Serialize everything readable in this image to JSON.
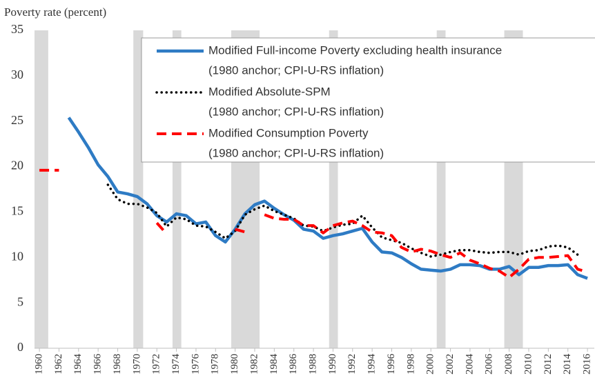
{
  "chart_data": {
    "type": "line",
    "y_label": "Poverty rate (percent)",
    "x": [
      1960,
      1961,
      1962,
      1963,
      1964,
      1965,
      1966,
      1967,
      1968,
      1969,
      1970,
      1971,
      1972,
      1973,
      1974,
      1975,
      1976,
      1977,
      1978,
      1979,
      1980,
      1981,
      1982,
      1983,
      1984,
      1985,
      1986,
      1987,
      1988,
      1989,
      1990,
      1991,
      1992,
      1993,
      1994,
      1995,
      1996,
      1997,
      1998,
      1999,
      2000,
      2001,
      2002,
      2003,
      2004,
      2005,
      2006,
      2007,
      2008,
      2009,
      2010,
      2011,
      2012,
      2013,
      2014,
      2015,
      2016
    ],
    "xticks": [
      1960,
      1962,
      1964,
      1966,
      1968,
      1970,
      1972,
      1974,
      1976,
      1978,
      1980,
      1982,
      1984,
      1986,
      1988,
      1990,
      1992,
      1994,
      1996,
      1998,
      2000,
      2002,
      2004,
      2006,
      2008,
      2010,
      2012,
      2014,
      2016
    ],
    "xlim": [
      1959.5,
      2016.7
    ],
    "ylim": [
      0,
      35
    ],
    "yticks": [
      0,
      5,
      10,
      15,
      20,
      25,
      30,
      35
    ],
    "grid": false,
    "recession_color": "#d9d9d9",
    "recessions": [
      [
        1959.5,
        1960.9
      ],
      [
        1969.6,
        1970.6
      ],
      [
        1973.6,
        1974.5
      ],
      [
        1979.6,
        1982.5
      ],
      [
        1989.6,
        1990.5
      ],
      [
        2000.6,
        2001.5
      ],
      [
        2007.5,
        2009.4
      ]
    ],
    "legend": "upper right",
    "series": [
      {
        "name": "Modified Full-income Poverty excluding health insurance",
        "detail": "(1980 anchor; CPI-U-RS inflation)",
        "color": "#2e7bc4",
        "style": "solid",
        "values": [
          null,
          null,
          null,
          25.4,
          23.8,
          22.1,
          20.2,
          18.9,
          17.2,
          17.0,
          16.7,
          15.9,
          14.6,
          13.9,
          14.8,
          14.6,
          13.7,
          13.9,
          12.4,
          11.7,
          13.1,
          14.8,
          15.8,
          16.2,
          15.4,
          14.7,
          14.1,
          13.1,
          12.9,
          12.1,
          12.4,
          12.6,
          12.9,
          13.2,
          11.7,
          10.6,
          10.5,
          10.0,
          9.3,
          8.7,
          8.6,
          8.5,
          8.7,
          9.2,
          9.2,
          9.1,
          8.7,
          8.7,
          9.0,
          8.1,
          8.9,
          8.9,
          9.1,
          9.1,
          9.2,
          8.1,
          7.7
        ]
      },
      {
        "name": "Modified Absolute-SPM",
        "detail": "(1980 anchor; CPI-U-RS inflation)",
        "color": "#000000",
        "style": "dotted",
        "values": [
          null,
          null,
          null,
          null,
          null,
          null,
          null,
          18.0,
          16.4,
          15.9,
          15.9,
          15.5,
          14.9,
          13.4,
          14.4,
          14.2,
          13.5,
          13.4,
          12.8,
          12.1,
          12.9,
          14.7,
          15.3,
          15.7,
          15.1,
          14.7,
          14.3,
          13.5,
          13.4,
          12.9,
          13.3,
          13.6,
          13.7,
          14.6,
          13.3,
          12.2,
          11.9,
          11.6,
          11.0,
          10.5,
          10.1,
          10.3,
          10.6,
          10.8,
          10.8,
          10.6,
          10.5,
          10.6,
          10.6,
          10.3,
          10.7,
          10.8,
          11.2,
          11.3,
          11.1,
          10.3,
          null
        ]
      },
      {
        "name": "Modified Consumption Poverty",
        "detail": "(1980 anchor; CPI-U-RS inflation)",
        "color": "#ff0000",
        "style": "dashed",
        "values": [
          19.6,
          19.6,
          19.6,
          null,
          null,
          null,
          null,
          null,
          null,
          null,
          null,
          null,
          13.8,
          12.6,
          null,
          null,
          null,
          null,
          null,
          null,
          13.1,
          12.8,
          null,
          14.7,
          14.3,
          14.2,
          14.2,
          13.5,
          13.5,
          12.7,
          13.5,
          13.8,
          14.0,
          13.5,
          12.8,
          12.7,
          12.4,
          11.1,
          10.6,
          10.9,
          10.7,
          10.3,
          10.0,
          10.5,
          9.7,
          9.3,
          8.8,
          8.5,
          7.8,
          8.7,
          9.8,
          10.0,
          10.0,
          10.1,
          10.2,
          8.7,
          8.4
        ]
      }
    ]
  }
}
